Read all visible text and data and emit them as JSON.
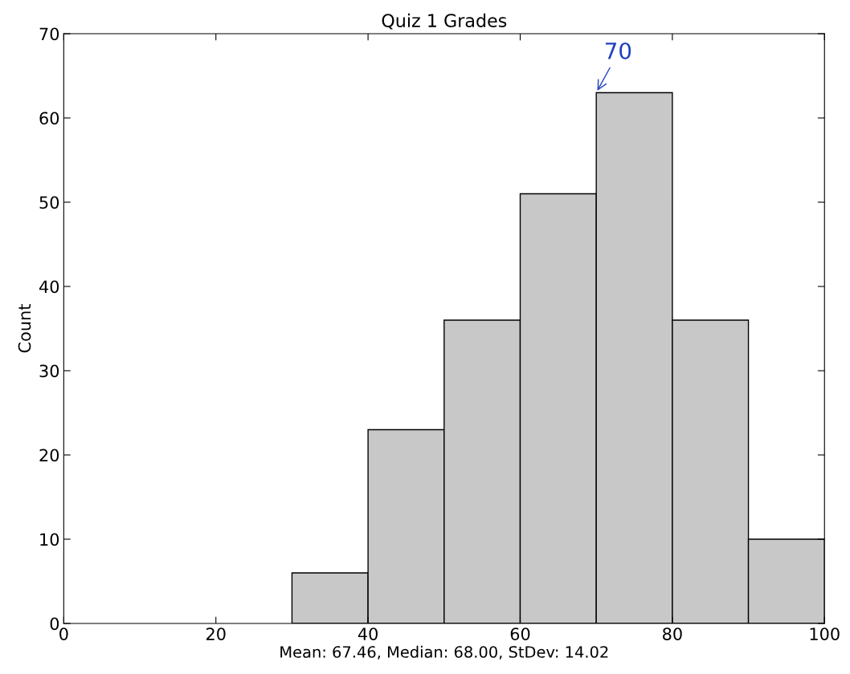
{
  "chart_data": {
    "type": "histogram",
    "title": "Quiz 1 Grades",
    "xlabel": "Mean: 67.46, Median: 68.00, StDev: 14.02",
    "ylabel": "Count",
    "bins": [
      30,
      40,
      50,
      60,
      70,
      80,
      90,
      100
    ],
    "values": [
      6,
      23,
      36,
      51,
      63,
      36,
      10
    ],
    "color": "#c8c8c8",
    "xlim": [
      0,
      100
    ],
    "xticks": [
      0,
      20,
      40,
      60,
      80,
      100
    ],
    "ylim": [
      0,
      70
    ],
    "yticks": [
      0,
      10,
      20,
      30,
      40,
      50,
      60,
      70
    ],
    "grid": false,
    "annotations": [
      {
        "text": "70",
        "x": 70,
        "y": 63
      }
    ]
  }
}
